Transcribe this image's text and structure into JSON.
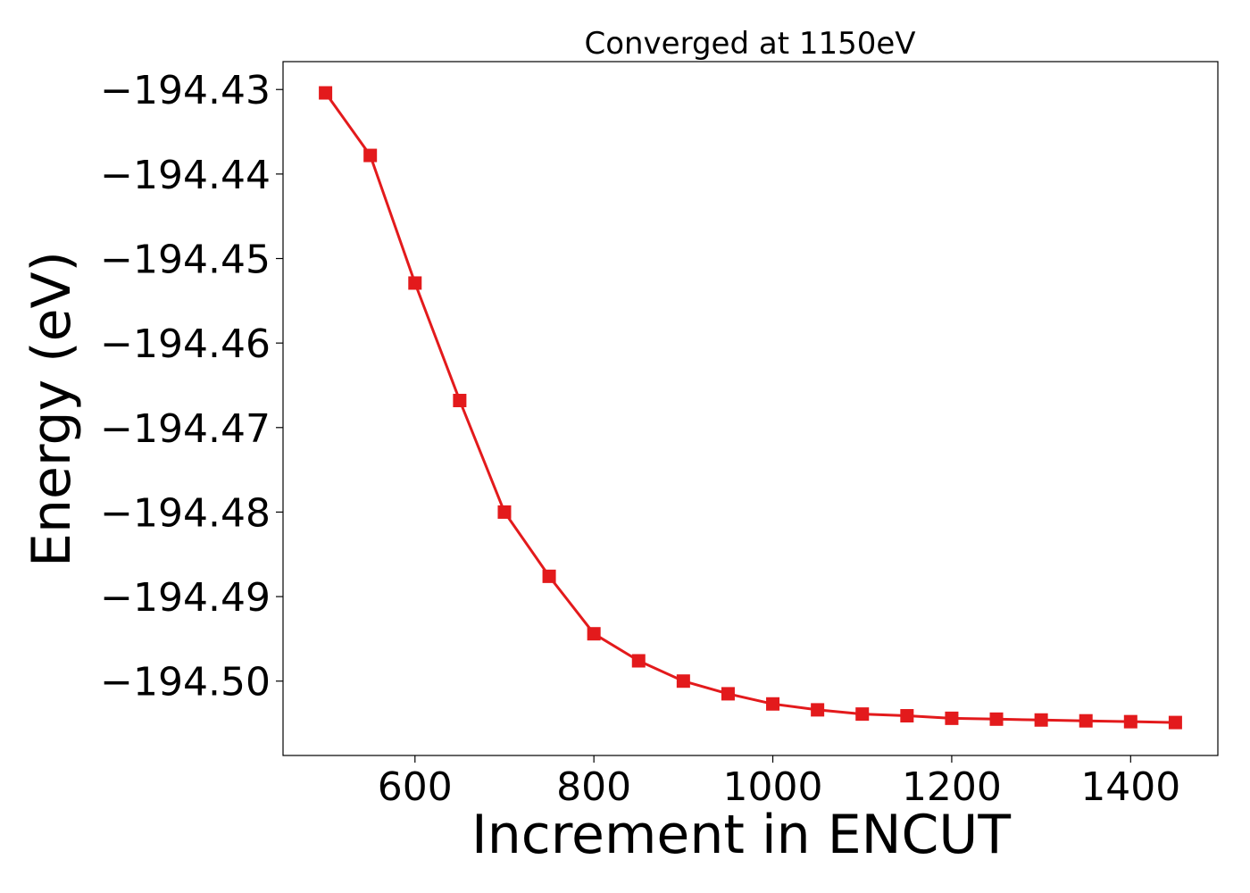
{
  "chart_data": {
    "type": "line",
    "title": "Converged at 1150eV",
    "xlabel": "Increment in ENCUT",
    "ylabel": "Energy (eV)",
    "xlim": [
      452.5,
      1497.5
    ],
    "ylim": [
      -194.5088,
      -194.4267
    ],
    "xticks": [
      600,
      800,
      1000,
      1200,
      1400
    ],
    "xtick_labels": [
      "600",
      "800",
      "1000",
      "1200",
      "1400"
    ],
    "yticks": [
      -194.43,
      -194.44,
      -194.45,
      -194.46,
      -194.47,
      -194.48,
      -194.49,
      -194.5
    ],
    "ytick_labels": [
      "−194.43",
      "−194.44",
      "−194.45",
      "−194.46",
      "−194.47",
      "−194.48",
      "−194.49",
      "−194.50"
    ],
    "grid": false,
    "series": [
      {
        "color": "#e31a1c",
        "marker": "square",
        "x": [
          500,
          550,
          600,
          650,
          700,
          750,
          800,
          850,
          900,
          950,
          1000,
          1050,
          1100,
          1150,
          1200,
          1250,
          1300,
          1350,
          1400,
          1450
        ],
        "y": [
          -194.4304,
          -194.4378,
          -194.4529,
          -194.4668,
          -194.48,
          -194.4876,
          -194.4944,
          -194.4976,
          -194.5,
          -194.5015,
          -194.5027,
          -194.5034,
          -194.5039,
          -194.5041,
          -194.5044,
          -194.5045,
          -194.5046,
          -194.5047,
          -194.5048,
          -194.5049
        ]
      }
    ]
  }
}
